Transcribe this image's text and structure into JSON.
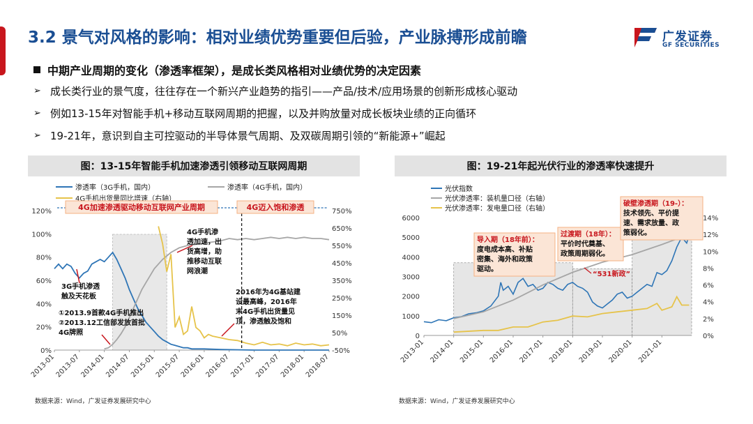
{
  "header": {
    "title": "3.2 景气对风格的影响：相对业绩优势重要但后验，产业脉搏形成前瞻",
    "logo_cn": "广发证券",
    "logo_en": "GF SECURITIES"
  },
  "bullets": {
    "main": "中期产业周期的变化（渗透率框架），是成长类风格相对业绩优势的决定因素",
    "items": [
      "成长类行业的景气度，往往存在一个新兴产业趋势的指引——产品/技术/应用场景的创新形成核心驱动",
      "例如13-15年对智能手机+移动互联网周期的把握，以及并购放量对成长板块业绩的正向循环",
      "19-21年，意识到自主可控驱动的半导体景气周期、及双碳周期引领的“新能源+”崛起"
    ]
  },
  "colors": {
    "title": "#1a4e93",
    "accent_red": "#c8161d",
    "series_blue": "#2e75b6",
    "series_grey": "#a6a6a6",
    "series_yellow": "#e6c34a"
  },
  "left_panel": {
    "heading": "图：13-15年智能手机加速渗透引领移动互联网周期",
    "source": "数据来源：Wind，广发证券发展研究中心",
    "annotations": {
      "period1": "4G加速渗透驱动移动互联网产业周期",
      "period2": "4G迈入饱和渗透",
      "note_a": [
        "4G手机渗",
        "透加速，出",
        "货高增，助",
        "推移动互联",
        "网浪潮"
      ],
      "note_b": [
        "2016年为4G基站建",
        "设最高峰，2016年",
        "末4G手机出货量见",
        "顶，渗透触及饱和"
      ],
      "note_c": [
        "3G手机渗透",
        "触及天花板"
      ],
      "note_d": [
        "①2013.9首款4G手机推出",
        "②2013.12工信部发放首批",
        "4G牌照"
      ]
    }
  },
  "right_panel": {
    "heading": "图：19-21年起光伏行业的渗透率快速提升",
    "source": "数据来源：Wind，广发证券发展研究中心",
    "annotations": {
      "stage1": [
        "导入期（18年前）：",
        "度电成本高、补贴",
        "密集、海外和政策",
        "驱动。"
      ],
      "stage2": [
        "过渡期（18年）：",
        "平价时代奠基、",
        "政策周期弱化。"
      ],
      "stage3": [
        "破壁渗透期（19-）：",
        "技术领先、平价提",
        "速、需求放量、政",
        "策弱化。"
      ],
      "event": "“531新政”"
    }
  },
  "chart_data": [
    {
      "type": "line",
      "x": [
        "2013-01",
        "2013-07",
        "2014-01",
        "2014-07",
        "2015-01",
        "2015-07",
        "2016-01",
        "2016-07",
        "2017-01",
        "2017-07",
        "2018-01",
        "2018-07"
      ],
      "x_ticks": [
        "2013-01",
        "2013-07",
        "2014-01",
        "2014-07",
        "2015-01",
        "2015-07",
        "2016-01",
        "2016-07",
        "2017-01",
        "2017-07",
        "2018-01",
        "2018-07"
      ],
      "y_left": {
        "ticks": [
          "0%",
          "20%",
          "40%",
          "60%",
          "80%",
          "100%",
          "120%"
        ],
        "range": [
          0,
          120
        ]
      },
      "y_right": {
        "ticks": [
          "-50%",
          "50%",
          "150%",
          "250%",
          "350%",
          "450%",
          "550%",
          "650%",
          "750%"
        ],
        "range": [
          -50,
          750
        ]
      },
      "legend": [
        "渗透率（3G手机，国内）",
        "渗透率（4G手机，国内）",
        "4G手机出货量同比增速（右轴）"
      ],
      "series": [
        {
          "name": "渗透率（3G手机，国内）",
          "axis": "left",
          "points": [
            [
              0,
              70
            ],
            [
              1,
              74
            ],
            [
              2,
              70
            ],
            [
              3,
              74
            ],
            [
              4,
              72
            ],
            [
              5,
              66
            ],
            [
              6,
              62
            ],
            [
              7,
              66
            ],
            [
              8,
              68
            ],
            [
              9,
              74
            ],
            [
              10,
              76
            ],
            [
              11,
              78
            ],
            [
              12,
              76
            ],
            [
              13,
              80
            ],
            [
              14,
              84
            ],
            [
              15,
              78
            ],
            [
              16,
              70
            ],
            [
              17,
              62
            ],
            [
              18,
              52
            ],
            [
              19,
              44
            ],
            [
              20,
              36
            ],
            [
              21,
              30
            ],
            [
              22,
              24
            ],
            [
              23,
              20
            ],
            [
              24,
              16
            ],
            [
              25,
              12
            ],
            [
              26,
              9
            ],
            [
              27,
              7
            ],
            [
              28,
              5
            ],
            [
              29,
              4
            ],
            [
              30,
              3
            ],
            [
              31,
              2
            ],
            [
              32,
              2
            ],
            [
              33,
              1
            ],
            [
              34,
              1
            ],
            [
              36,
              1
            ],
            [
              40,
              0.5
            ],
            [
              48,
              0
            ],
            [
              66,
              0
            ]
          ]
        },
        {
          "name": "渗透率（4G手机，国内）",
          "axis": "left",
          "points": [
            [
              12,
              1
            ],
            [
              13,
              2
            ],
            [
              14,
              5
            ],
            [
              15,
              9
            ],
            [
              16,
              14
            ],
            [
              17,
              20
            ],
            [
              18,
              28
            ],
            [
              19,
              36
            ],
            [
              20,
              44
            ],
            [
              21,
              52
            ],
            [
              22,
              58
            ],
            [
              23,
              64
            ],
            [
              24,
              70
            ],
            [
              25,
              74
            ],
            [
              26,
              78
            ],
            [
              27,
              81
            ],
            [
              28,
              84
            ],
            [
              29,
              86
            ],
            [
              30,
              88
            ],
            [
              32,
              90
            ],
            [
              34,
              91
            ],
            [
              36,
              92
            ],
            [
              38,
              93
            ],
            [
              40,
              94
            ],
            [
              42,
              96
            ],
            [
              44,
              95
            ],
            [
              46,
              96
            ],
            [
              48,
              95
            ],
            [
              50,
              96
            ],
            [
              52,
              97
            ],
            [
              54,
              96
            ],
            [
              56,
              97
            ],
            [
              58,
              96
            ],
            [
              60,
              97
            ],
            [
              62,
              96
            ],
            [
              64,
              96
            ],
            [
              66,
              95
            ]
          ]
        },
        {
          "name": "4G手机出货量同比增速（右轴）",
          "axis": "right",
          "points": [
            [
              25,
              660
            ],
            [
              26,
              560
            ],
            [
              27,
              400
            ],
            [
              28,
              500
            ],
            [
              29,
              80
            ],
            [
              30,
              140
            ],
            [
              31,
              40
            ],
            [
              32,
              60
            ],
            [
              33,
              200
            ],
            [
              34,
              80
            ],
            [
              35,
              60
            ],
            [
              36,
              20
            ],
            [
              37,
              40
            ],
            [
              38,
              30
            ],
            [
              40,
              20
            ],
            [
              42,
              10
            ],
            [
              44,
              5
            ],
            [
              46,
              -10
            ],
            [
              48,
              -20
            ],
            [
              50,
              -5
            ],
            [
              52,
              -20
            ],
            [
              54,
              -15
            ],
            [
              56,
              -25
            ],
            [
              58,
              -10
            ],
            [
              60,
              -20
            ],
            [
              62,
              -15
            ],
            [
              64,
              -25
            ],
            [
              66,
              -20
            ]
          ]
        }
      ]
    },
    {
      "type": "line",
      "x_ticks": [
        "2013-01",
        "2014-01",
        "2015-01",
        "2016-01",
        "2017-01",
        "2018-01",
        "2019-01",
        "2020-01",
        "2021-01"
      ],
      "y_left": {
        "ticks": [
          "0",
          "1000",
          "2000",
          "3000",
          "4000",
          "5000",
          "6000"
        ],
        "range": [
          0,
          6000
        ]
      },
      "y_right": {
        "ticks": [
          "0%",
          "2%",
          "4%",
          "6%",
          "8%",
          "10%",
          "12%",
          "14%"
        ],
        "range": [
          0,
          14
        ]
      },
      "legend": [
        "光伏指数",
        "光伏渗透率：装机量口径（右轴）",
        "光伏渗透率：发电量口径（右轴）"
      ],
      "series": [
        {
          "name": "光伏指数",
          "axis": "left",
          "points": [
            [
              0,
              700
            ],
            [
              3,
              650
            ],
            [
              6,
              800
            ],
            [
              9,
              750
            ],
            [
              12,
              900
            ],
            [
              15,
              950
            ],
            [
              18,
              1100
            ],
            [
              21,
              1150
            ],
            [
              24,
              1250
            ],
            [
              27,
              1500
            ],
            [
              30,
              2000
            ],
            [
              31,
              2700
            ],
            [
              32,
              2300
            ],
            [
              34,
              2500
            ],
            [
              36,
              2100
            ],
            [
              38,
              2700
            ],
            [
              40,
              2900
            ],
            [
              42,
              2500
            ],
            [
              44,
              2600
            ],
            [
              46,
              2300
            ],
            [
              48,
              2400
            ],
            [
              50,
              2700
            ],
            [
              52,
              2600
            ],
            [
              54,
              2400
            ],
            [
              56,
              2300
            ],
            [
              58,
              2600
            ],
            [
              60,
              2700
            ],
            [
              62,
              2500
            ],
            [
              64,
              2400
            ],
            [
              66,
              2200
            ],
            [
              68,
              1700
            ],
            [
              70,
              1500
            ],
            [
              72,
              1400
            ],
            [
              74,
              1600
            ],
            [
              76,
              1800
            ],
            [
              78,
              2100
            ],
            [
              80,
              2200
            ],
            [
              82,
              1900
            ],
            [
              84,
              2000
            ],
            [
              86,
              2200
            ],
            [
              88,
              2400
            ],
            [
              90,
              2600
            ],
            [
              92,
              2500
            ],
            [
              94,
              3200
            ],
            [
              96,
              3100
            ],
            [
              98,
              3300
            ],
            [
              100,
              3800
            ],
            [
              102,
              4500
            ],
            [
              104,
              5000
            ],
            [
              106,
              4700
            ],
            [
              107,
              5100
            ]
          ]
        },
        {
          "name": "光伏渗透率：装机量口径（右轴）",
          "axis": "right",
          "points": [
            [
              12,
              2.0
            ],
            [
              24,
              2.8
            ],
            [
              36,
              4.2
            ],
            [
              48,
              6.0
            ],
            [
              60,
              7.5
            ],
            [
              72,
              8.7
            ],
            [
              84,
              9.6
            ],
            [
              96,
              10.8
            ],
            [
              107,
              12.0
            ]
          ]
        },
        {
          "name": "光伏渗透率：发电量口径（右轴）",
          "axis": "right",
          "points": [
            [
              12,
              0.4
            ],
            [
              24,
              0.6
            ],
            [
              30,
              0.6
            ],
            [
              36,
              1.0
            ],
            [
              42,
              1.0
            ],
            [
              48,
              1.6
            ],
            [
              54,
              1.8
            ],
            [
              60,
              2.3
            ],
            [
              66,
              2.2
            ],
            [
              72,
              2.6
            ],
            [
              78,
              2.8
            ],
            [
              84,
              3.0
            ],
            [
              90,
              3.2
            ],
            [
              94,
              3.8
            ],
            [
              96,
              3.0
            ],
            [
              100,
              3.4
            ],
            [
              102,
              4.6
            ],
            [
              104,
              3.6
            ],
            [
              107,
              3.6
            ]
          ]
        }
      ]
    }
  ]
}
